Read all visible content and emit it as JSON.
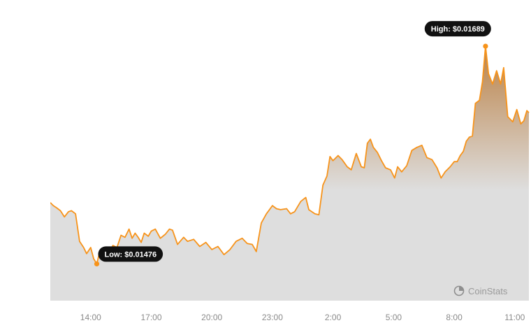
{
  "chart_data": {
    "type": "area",
    "x_ticks": [
      "14:00",
      "17:00",
      "20:00",
      "23:00",
      "2:00",
      "5:00",
      "8:00",
      "11:00"
    ],
    "x_tick_hours": [
      2.0,
      5.0,
      8.0,
      11.0,
      14.0,
      17.0,
      20.0,
      23.0
    ],
    "ylim": [
      0.0144,
      0.017
    ],
    "x_range_hours": [
      0.0,
      23.7
    ],
    "x_hours": [
      0.0,
      0.15,
      0.3,
      0.5,
      0.7,
      0.9,
      1.05,
      1.25,
      1.45,
      1.65,
      1.8,
      2.0,
      2.15,
      2.3,
      2.45,
      2.6,
      2.75,
      2.9,
      3.1,
      3.3,
      3.5,
      3.7,
      3.9,
      4.05,
      4.2,
      4.35,
      4.5,
      4.65,
      4.85,
      5.0,
      5.2,
      5.45,
      5.7,
      5.9,
      6.05,
      6.3,
      6.6,
      6.8,
      7.1,
      7.4,
      7.7,
      8.0,
      8.3,
      8.6,
      8.9,
      9.2,
      9.5,
      9.75,
      10.0,
      10.2,
      10.45,
      10.7,
      11.0,
      11.2,
      11.4,
      11.7,
      11.9,
      12.1,
      12.4,
      12.65,
      12.8,
      13.1,
      13.3,
      13.5,
      13.7,
      13.85,
      14.0,
      14.25,
      14.45,
      14.7,
      14.9,
      15.15,
      15.4,
      15.55,
      15.7,
      15.85,
      16.0,
      16.2,
      16.4,
      16.6,
      16.85,
      17.05,
      17.2,
      17.4,
      17.65,
      17.9,
      18.15,
      18.4,
      18.65,
      18.9,
      19.15,
      19.35,
      19.55,
      19.8,
      20.0,
      20.15,
      20.3,
      20.45,
      20.6,
      20.75,
      20.9,
      21.05,
      21.25,
      21.4,
      21.55,
      21.7,
      21.9,
      22.1,
      22.3,
      22.45,
      22.65,
      22.9,
      23.1,
      23.3,
      23.45,
      23.6,
      23.7
    ],
    "values": [
      0.01536,
      0.01533,
      0.01531,
      0.01528,
      0.01522,
      0.01527,
      0.01528,
      0.01525,
      0.01498,
      0.01492,
      0.01486,
      0.01492,
      0.01481,
      0.01476,
      0.01488,
      0.01486,
      0.0149,
      0.01487,
      0.01494,
      0.01492,
      0.01504,
      0.01502,
      0.0151,
      0.01501,
      0.01506,
      0.01502,
      0.01497,
      0.01506,
      0.01503,
      0.01508,
      0.0151,
      0.01501,
      0.01505,
      0.0151,
      0.01509,
      0.01495,
      0.01502,
      0.01498,
      0.015,
      0.01493,
      0.01497,
      0.0149,
      0.01493,
      0.01485,
      0.0149,
      0.01498,
      0.01501,
      0.01496,
      0.01495,
      0.01488,
      0.01516,
      0.01525,
      0.01533,
      0.0153,
      0.01529,
      0.0153,
      0.01525,
      0.01527,
      0.01537,
      0.01541,
      0.01529,
      0.01525,
      0.01524,
      0.01553,
      0.01562,
      0.01581,
      0.01577,
      0.01582,
      0.01578,
      0.01571,
      0.01568,
      0.01584,
      0.01571,
      0.0157,
      0.01594,
      0.01598,
      0.0159,
      0.01585,
      0.01577,
      0.0157,
      0.01568,
      0.0156,
      0.01571,
      0.01566,
      0.01572,
      0.01587,
      0.0159,
      0.01592,
      0.0158,
      0.01578,
      0.0157,
      0.0156,
      0.01566,
      0.01571,
      0.01576,
      0.01576,
      0.01582,
      0.01586,
      0.01596,
      0.016,
      0.01601,
      0.01633,
      0.01636,
      0.01654,
      0.01689,
      0.01662,
      0.01652,
      0.01665,
      0.01652,
      0.01668,
      0.0162,
      0.01615,
      0.01627,
      0.01613,
      0.01616,
      0.01626,
      0.01624
    ],
    "low_index": 13,
    "high_index": 104,
    "annotations": {
      "low": "Low: $0.01476",
      "high": "High: $0.01689"
    },
    "grid": false,
    "legend": "none"
  },
  "colors": {
    "line": "#f7931a",
    "area_top": "#b87a3a",
    "area_bottom": "#dedede",
    "callout_bg": "#111111",
    "brand": "#9a9a9a"
  },
  "watermark": {
    "label": "CoinStats",
    "icon": "coinstats-logo-icon"
  }
}
